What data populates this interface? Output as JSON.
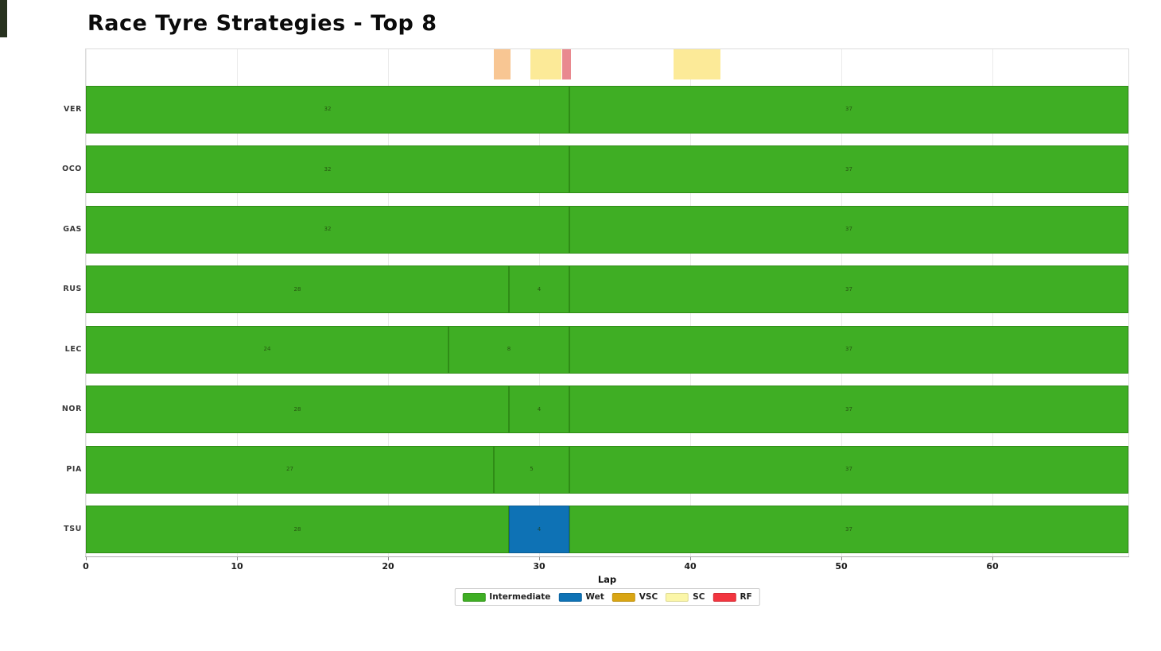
{
  "title": "Race Tyre Strategies - Top 8",
  "chart_data": {
    "type": "bar",
    "subtype": "horizontal-stacked-timeline",
    "title": "Race Tyre Strategies - Top 8",
    "xlabel": "Lap",
    "xlim": [
      0,
      69
    ],
    "xticks": [
      0,
      10,
      20,
      30,
      40,
      50,
      60
    ],
    "grid": "vertical-light",
    "legend_position": "bottom-center",
    "total_laps": 69,
    "rows": [
      {
        "driver": "VER",
        "stints": [
          {
            "compound": "intermediate",
            "laps": 32
          },
          {
            "compound": "intermediate",
            "laps": 37
          }
        ]
      },
      {
        "driver": "OCO",
        "stints": [
          {
            "compound": "intermediate",
            "laps": 32
          },
          {
            "compound": "intermediate",
            "laps": 37
          }
        ]
      },
      {
        "driver": "GAS",
        "stints": [
          {
            "compound": "intermediate",
            "laps": 32
          },
          {
            "compound": "intermediate",
            "laps": 37
          }
        ]
      },
      {
        "driver": "RUS",
        "stints": [
          {
            "compound": "intermediate",
            "laps": 28
          },
          {
            "compound": "intermediate",
            "laps": 4
          },
          {
            "compound": "intermediate",
            "laps": 37
          }
        ]
      },
      {
        "driver": "LEC",
        "stints": [
          {
            "compound": "intermediate",
            "laps": 24
          },
          {
            "compound": "intermediate",
            "laps": 8
          },
          {
            "compound": "intermediate",
            "laps": 37
          }
        ]
      },
      {
        "driver": "NOR",
        "stints": [
          {
            "compound": "intermediate",
            "laps": 28
          },
          {
            "compound": "intermediate",
            "laps": 4
          },
          {
            "compound": "intermediate",
            "laps": 37
          }
        ]
      },
      {
        "driver": "PIA",
        "stints": [
          {
            "compound": "intermediate",
            "laps": 27
          },
          {
            "compound": "intermediate",
            "laps": 5
          },
          {
            "compound": "intermediate",
            "laps": 37
          }
        ]
      },
      {
        "driver": "TSU",
        "stints": [
          {
            "compound": "intermediate",
            "laps": 28
          },
          {
            "compound": "wet",
            "laps": 4
          },
          {
            "compound": "intermediate",
            "laps": 37
          }
        ]
      }
    ],
    "race_control_periods": [
      {
        "type": "VSC",
        "start_lap": 27,
        "end_lap": 28.1
      },
      {
        "type": "SC",
        "start_lap": 29.4,
        "end_lap": 31.5
      },
      {
        "type": "RF",
        "start_lap": 31.5,
        "end_lap": 32.1
      },
      {
        "type": "SC",
        "start_lap": 38.9,
        "end_lap": 42
      }
    ],
    "legend": [
      {
        "label": "Intermediate",
        "key": "intermediate"
      },
      {
        "label": "Wet",
        "key": "wet"
      },
      {
        "label": "VSC",
        "key": "vsc"
      },
      {
        "label": "SC",
        "key": "sc"
      },
      {
        "label": "RF",
        "key": "rf"
      }
    ]
  },
  "colors": {
    "intermediate": "#3fae24",
    "intermediate_edge": "#2f8c16",
    "wet": "#0e72b5",
    "wet_edge": "#0b5c92",
    "vsc": "#d9a513",
    "sc": "#fbf6a8",
    "rf": "#f2353f",
    "band_vsc": "#f8c693",
    "band_sc": "#fcea98",
    "band_rf": "#e9898f",
    "grid": "#ebebeb",
    "axis": "#ababab",
    "title_text": "#0b0b0b"
  }
}
